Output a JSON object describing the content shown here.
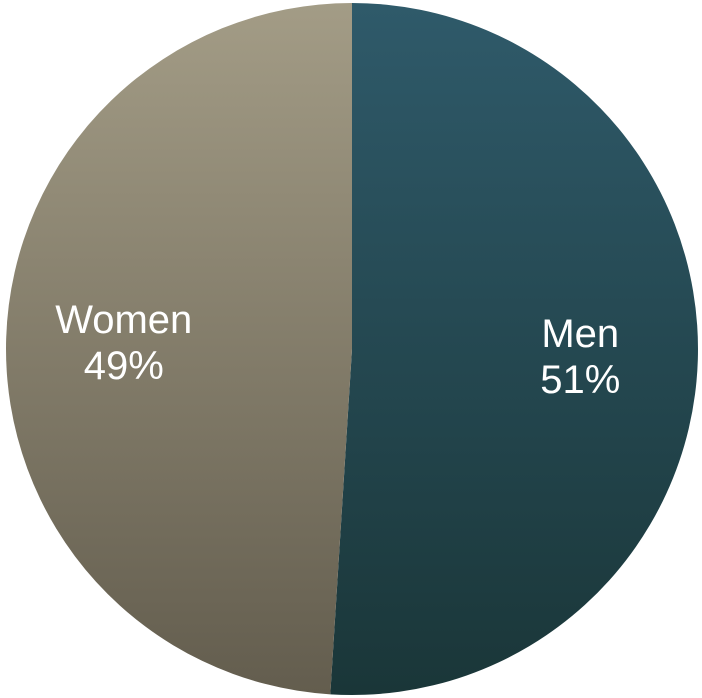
{
  "chart_data": {
    "type": "pie",
    "title": "",
    "series": [
      {
        "values": [
          51,
          49
        ]
      }
    ],
    "categories": [
      "Men",
      "Women"
    ],
    "slices": [
      {
        "label": "Men",
        "value": 51,
        "percent_label": "51%",
        "color_top": "#2f5a6a",
        "color_bottom": "#1a3638"
      },
      {
        "label": "Women",
        "value": 49,
        "percent_label": "49%",
        "color_top": "#a39c86",
        "color_bottom": "#635d4e"
      }
    ],
    "legend": "none"
  }
}
